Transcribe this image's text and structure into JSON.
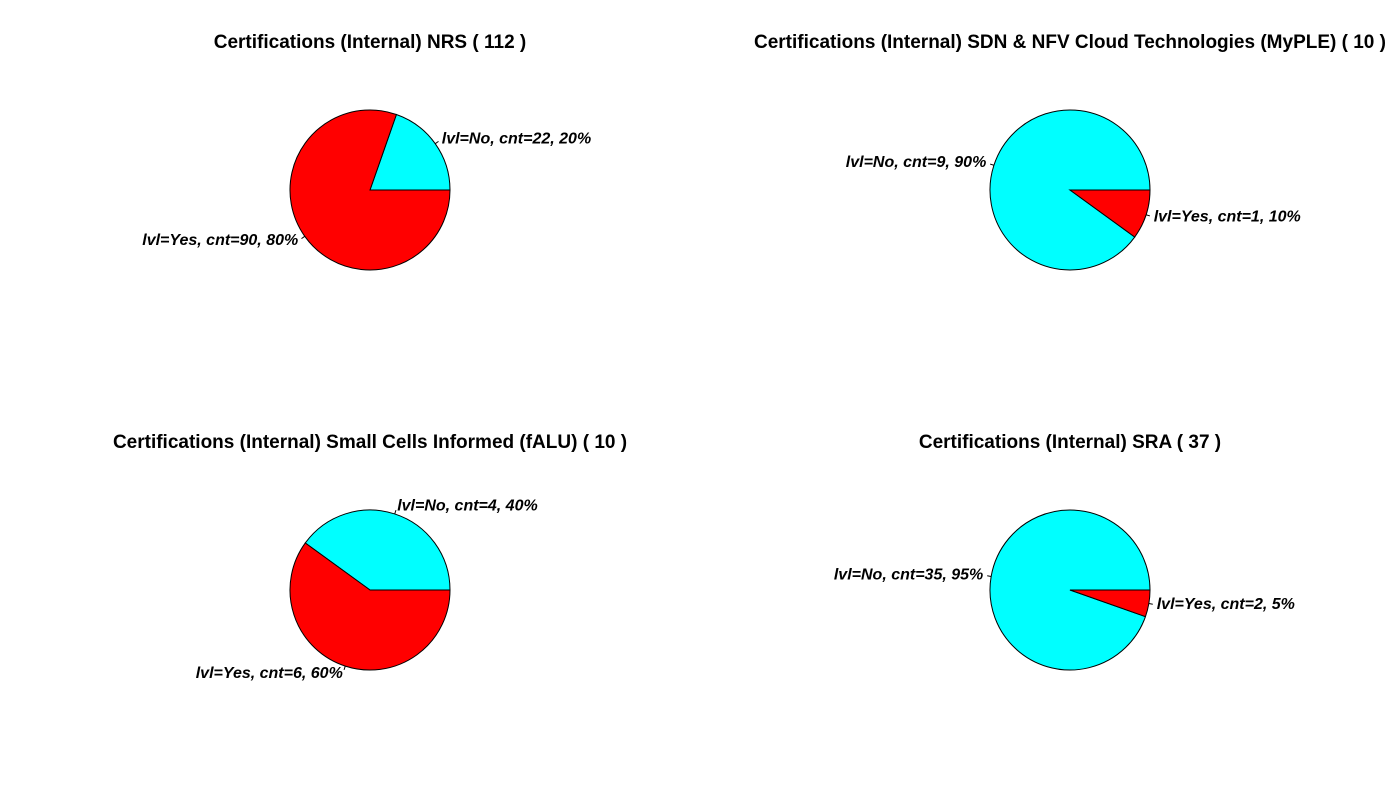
{
  "chart_data": [
    {
      "type": "pie",
      "title": "Certifications (Internal) NRS ( 112 )",
      "slices": [
        {
          "name": "No",
          "value": 22,
          "percent": 20,
          "color": "#00ffff",
          "label": "lvl=No, cnt=22, 20%"
        },
        {
          "name": "Yes",
          "value": 90,
          "percent": 80,
          "color": "#ff0000",
          "label": "lvl=Yes, cnt=90, 80%"
        }
      ]
    },
    {
      "type": "pie",
      "title": "Certifications (Internal) SDN & NFV Cloud Technologies (MyPLE) ( 10 )",
      "slices": [
        {
          "name": "No",
          "value": 9,
          "percent": 90,
          "color": "#00ffff",
          "label": "lvl=No, cnt=9, 90%"
        },
        {
          "name": "Yes",
          "value": 1,
          "percent": 10,
          "color": "#ff0000",
          "label": "lvl=Yes, cnt=1, 10%"
        }
      ]
    },
    {
      "type": "pie",
      "title": "Certifications (Internal) Small Cells Informed (fALU) ( 10 )",
      "slices": [
        {
          "name": "No",
          "value": 4,
          "percent": 40,
          "color": "#00ffff",
          "label": "lvl=No, cnt=4, 40%"
        },
        {
          "name": "Yes",
          "value": 6,
          "percent": 60,
          "color": "#ff0000",
          "label": "lvl=Yes, cnt=6, 60%"
        }
      ]
    },
    {
      "type": "pie",
      "title": "Certifications (Internal) SRA ( 37 )",
      "slices": [
        {
          "name": "No",
          "value": 35,
          "percent": 95,
          "color": "#00ffff",
          "label": "lvl=No, cnt=35, 95%"
        },
        {
          "name": "Yes",
          "value": 2,
          "percent": 5,
          "color": "#ff0000",
          "label": "lvl=Yes, cnt=2, 5%"
        }
      ]
    }
  ]
}
